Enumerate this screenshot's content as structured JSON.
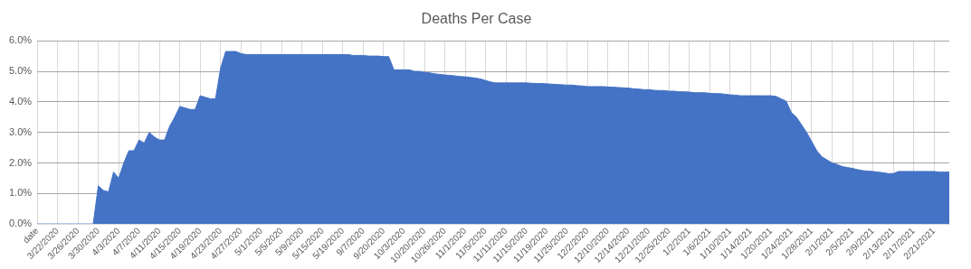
{
  "chart_data": {
    "type": "area",
    "title": "Deaths Per Case",
    "color": "#4472c4",
    "grid": true,
    "categories": [
      "date",
      null,
      null,
      null,
      "3/22/2020",
      null,
      null,
      null,
      "3/26/2020",
      null,
      null,
      null,
      "3/30/2020",
      null,
      null,
      null,
      "4/3/2020",
      null,
      null,
      null,
      "4/7/2020",
      null,
      null,
      null,
      "4/11/2020",
      null,
      null,
      null,
      "4/15/2020",
      null,
      null,
      null,
      "4/19/2020",
      null,
      null,
      null,
      "4/23/2020",
      null,
      null,
      null,
      "4/27/2020",
      null,
      null,
      null,
      "5/1/2020",
      null,
      null,
      null,
      "5/5/2020",
      null,
      null,
      null,
      "5/9/2020",
      null,
      null,
      null,
      "5/15/2020",
      null,
      null,
      null,
      "5/19/2020",
      null,
      null,
      null,
      "9/7/2020",
      null,
      null,
      null,
      "9/20/2020",
      null,
      null,
      null,
      "10/3/2020",
      null,
      null,
      null,
      "10/20/2020",
      null,
      null,
      null,
      "10/26/2020",
      null,
      null,
      null,
      "11/1/2020",
      null,
      null,
      null,
      "11/5/2020",
      null,
      null,
      null,
      "11/11/2020",
      null,
      null,
      null,
      "11/15/2020",
      null,
      null,
      null,
      "11/19/2020",
      null,
      null,
      null,
      "11/25/2020",
      null,
      null,
      null,
      "12/2/2020",
      null,
      null,
      null,
      "12/10/2020",
      null,
      null,
      null,
      "12/14/2020",
      null,
      null,
      null,
      "12/21/2020",
      null,
      null,
      null,
      "12/25/2020",
      null,
      null,
      null,
      "1/2/2021",
      null,
      null,
      null,
      "1/6/2021",
      null,
      null,
      null,
      "1/10/2021",
      null,
      null,
      null,
      "1/14/2021",
      null,
      null,
      null,
      "1/20/2021",
      null,
      null,
      null,
      "1/24/2021",
      null,
      null,
      null,
      "1/28/2021",
      null,
      null,
      null,
      "2/1/2021",
      null,
      null,
      null,
      "2/5/2021",
      null,
      null,
      null,
      "2/9/2021",
      null,
      null,
      null,
      "2/13/2021",
      null,
      null,
      null,
      "2/17/2021",
      null,
      null,
      null,
      "2/21/2021",
      null,
      null,
      null
    ],
    "values": [
      0,
      0,
      0,
      0,
      0,
      0,
      0,
      0,
      0,
      0,
      0,
      0,
      1.25,
      1.1,
      1.05,
      1.7,
      1.5,
      2.0,
      2.4,
      2.4,
      2.75,
      2.65,
      3.0,
      2.85,
      2.75,
      2.75,
      3.2,
      3.5,
      3.85,
      3.8,
      3.75,
      3.75,
      4.2,
      4.15,
      4.1,
      4.1,
      5.1,
      5.65,
      5.65,
      5.65,
      5.58,
      5.55,
      5.55,
      5.55,
      5.55,
      5.55,
      5.55,
      5.55,
      5.55,
      5.55,
      5.55,
      5.55,
      5.55,
      5.55,
      5.55,
      5.55,
      5.55,
      5.55,
      5.55,
      5.55,
      5.55,
      5.55,
      5.52,
      5.52,
      5.52,
      5.5,
      5.5,
      5.5,
      5.48,
      5.48,
      5.05,
      5.05,
      5.05,
      5.05,
      5.0,
      5.0,
      4.97,
      4.95,
      4.92,
      4.9,
      4.88,
      4.87,
      4.85,
      4.83,
      4.82,
      4.8,
      4.78,
      4.75,
      4.7,
      4.65,
      4.62,
      4.62,
      4.62,
      4.62,
      4.62,
      4.62,
      4.62,
      4.61,
      4.6,
      4.6,
      4.59,
      4.58,
      4.57,
      4.56,
      4.55,
      4.55,
      4.53,
      4.52,
      4.5,
      4.5,
      4.5,
      4.5,
      4.49,
      4.48,
      4.47,
      4.46,
      4.45,
      4.43,
      4.42,
      4.4,
      4.4,
      4.38,
      4.37,
      4.37,
      4.35,
      4.35,
      4.33,
      4.33,
      4.32,
      4.3,
      4.3,
      4.3,
      4.28,
      4.27,
      4.27,
      4.25,
      4.23,
      4.22,
      4.2,
      4.2,
      4.2,
      4.2,
      4.2,
      4.2,
      4.2,
      4.18,
      4.1,
      4.02,
      3.65,
      3.5,
      3.25,
      3.0,
      2.7,
      2.4,
      2.2,
      2.1,
      2.0,
      1.95,
      1.88,
      1.85,
      1.82,
      1.78,
      1.75,
      1.73,
      1.72,
      1.7,
      1.68,
      1.65,
      1.65,
      1.72,
      1.72,
      1.72,
      1.72,
      1.72,
      1.72,
      1.72,
      1.72,
      1.7,
      1.7,
      1.7
    ],
    "ylim": [
      0,
      6
    ],
    "yticks": [
      {
        "value": 0,
        "label": "0.0%"
      },
      {
        "value": 1,
        "label": "1.0%"
      },
      {
        "value": 2,
        "label": "2.0%"
      },
      {
        "value": 3,
        "label": "3.0%"
      },
      {
        "value": 4,
        "label": "4.0%"
      },
      {
        "value": 5,
        "label": "5.0%"
      },
      {
        "value": 6,
        "label": "6.0%"
      }
    ]
  }
}
